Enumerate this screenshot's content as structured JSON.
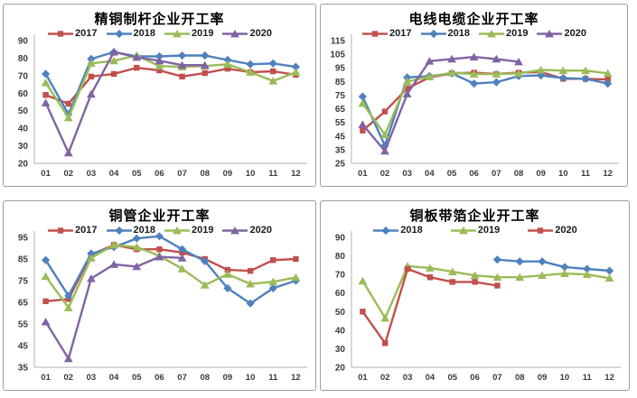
{
  "style": {
    "background": "#FFFFFF",
    "panel_border_color": "#9E9E9E",
    "axis_color": "#BFBFBF",
    "tick_label_color": "#3B3B3B",
    "series_colors": {
      "red": "#C0504D",
      "blue": "#4F81BD",
      "green": "#9BBB59",
      "purple": "#8064A2"
    }
  },
  "chart_data": [
    {
      "position": "top-left",
      "type": "line",
      "title": "精铜制杆企业开工率",
      "xlabel": "",
      "ylabel": "",
      "grid": false,
      "legend_position": "top",
      "x_labels": [
        "01",
        "02",
        "03",
        "04",
        "05",
        "06",
        "07",
        "08",
        "09",
        "10",
        "11",
        "12"
      ],
      "ylim": [
        20,
        90
      ],
      "ytick_step": 10,
      "series": [
        {
          "name": "2017",
          "color": "#C0504D",
          "marker": "square",
          "values": [
            59,
            54,
            69.5,
            71,
            74.5,
            73,
            69.5,
            71.5,
            74,
            72,
            72.5,
            70.5
          ]
        },
        {
          "name": "2018",
          "color": "#4F81BD",
          "marker": "diamond",
          "values": [
            71,
            48,
            79.5,
            83.5,
            81,
            81,
            81.5,
            81.5,
            79,
            76.5,
            77,
            75
          ]
        },
        {
          "name": "2019",
          "color": "#9BBB59",
          "marker": "triangle",
          "values": [
            66,
            46,
            77,
            78.5,
            81.5,
            75.5,
            75,
            75.5,
            76.5,
            72,
            67,
            72
          ]
        },
        {
          "name": "2020",
          "color": "#8064A2",
          "marker": "triangle",
          "values": [
            54.5,
            26,
            59.5,
            83.5,
            80.5,
            78.5,
            76,
            76,
            null,
            null,
            null,
            null
          ]
        }
      ]
    },
    {
      "position": "top-right",
      "type": "line",
      "title": "电线电缆企业开工率",
      "xlabel": "",
      "ylabel": "",
      "grid": false,
      "legend_position": "top",
      "x_labels": [
        "01",
        "02",
        "03",
        "04",
        "05",
        "06",
        "07",
        "08",
        "09",
        "10",
        "11",
        "12"
      ],
      "ylim": [
        25,
        115
      ],
      "ytick_step": 10,
      "series": [
        {
          "name": "2017",
          "color": "#C0504D",
          "marker": "square",
          "values": [
            49,
            63,
            80,
            88,
            91,
            91.5,
            90.5,
            91.5,
            92,
            87,
            87,
            86.5
          ]
        },
        {
          "name": "2018",
          "color": "#4F81BD",
          "marker": "diamond",
          "values": [
            74,
            38,
            88,
            89,
            91,
            83.5,
            84.5,
            89,
            89.5,
            87.5,
            87,
            83.5
          ]
        },
        {
          "name": "2019",
          "color": "#9BBB59",
          "marker": "triangle",
          "values": [
            69,
            46,
            85,
            88.5,
            91.5,
            90.5,
            90.5,
            91,
            93.5,
            93,
            93,
            91
          ]
        },
        {
          "name": "2020",
          "color": "#8064A2",
          "marker": "triangle",
          "values": [
            53.5,
            34,
            76,
            100,
            101.5,
            103,
            101.5,
            99.5,
            null,
            null,
            null,
            null
          ]
        }
      ]
    },
    {
      "position": "bottom-left",
      "type": "line",
      "title": "铜管企业开工率",
      "xlabel": "",
      "ylabel": "",
      "grid": false,
      "legend_position": "top",
      "x_labels": [
        "01",
        "02",
        "03",
        "04",
        "05",
        "06",
        "07",
        "08",
        "09",
        "10",
        "11",
        "12"
      ],
      "ylim": [
        35,
        95
      ],
      "ytick_step": 10,
      "series": [
        {
          "name": "2017",
          "color": "#C0504D",
          "marker": "square",
          "values": [
            65.5,
            66.5,
            87,
            91.5,
            89.5,
            89.5,
            88,
            85,
            80,
            79.5,
            84.5,
            85
          ]
        },
        {
          "name": "2018",
          "color": "#4F81BD",
          "marker": "diamond",
          "values": [
            84.5,
            68,
            87.5,
            90.5,
            94.5,
            95.5,
            89.5,
            84,
            71.5,
            64.5,
            71.5,
            75
          ]
        },
        {
          "name": "2019",
          "color": "#9BBB59",
          "marker": "triangle",
          "values": [
            77,
            62.5,
            85.5,
            91.5,
            90.5,
            86.5,
            80.5,
            73,
            78,
            73.5,
            74.5,
            76.5
          ]
        },
        {
          "name": "2020",
          "color": "#8064A2",
          "marker": "triangle",
          "values": [
            56,
            39,
            76,
            82.5,
            81.5,
            86,
            85.5,
            null,
            null,
            null,
            null,
            null
          ]
        }
      ]
    },
    {
      "position": "bottom-right",
      "type": "line",
      "title": "铜板带箔企业开工率",
      "xlabel": "",
      "ylabel": "",
      "grid": false,
      "legend_position": "top",
      "x_labels": [
        "01",
        "02",
        "03",
        "04",
        "05",
        "06",
        "07",
        "08",
        "09",
        "10",
        "11",
        "12"
      ],
      "ylim": [
        20,
        90
      ],
      "ytick_step": 10,
      "series": [
        {
          "name": "2018",
          "color": "#4F81BD",
          "marker": "diamond",
          "values": [
            null,
            null,
            null,
            null,
            null,
            null,
            78,
            77,
            77,
            74,
            73,
            72
          ]
        },
        {
          "name": "2019",
          "color": "#9BBB59",
          "marker": "triangle",
          "values": [
            66.5,
            46.5,
            74.5,
            73.5,
            71.5,
            69.5,
            68.5,
            68.5,
            69.5,
            70.5,
            70,
            68
          ]
        },
        {
          "name": "2020",
          "color": "#C0504D",
          "marker": "square",
          "values": [
            50,
            33,
            73,
            68.5,
            66,
            66,
            64,
            null,
            null,
            null,
            null,
            null
          ]
        }
      ]
    }
  ]
}
